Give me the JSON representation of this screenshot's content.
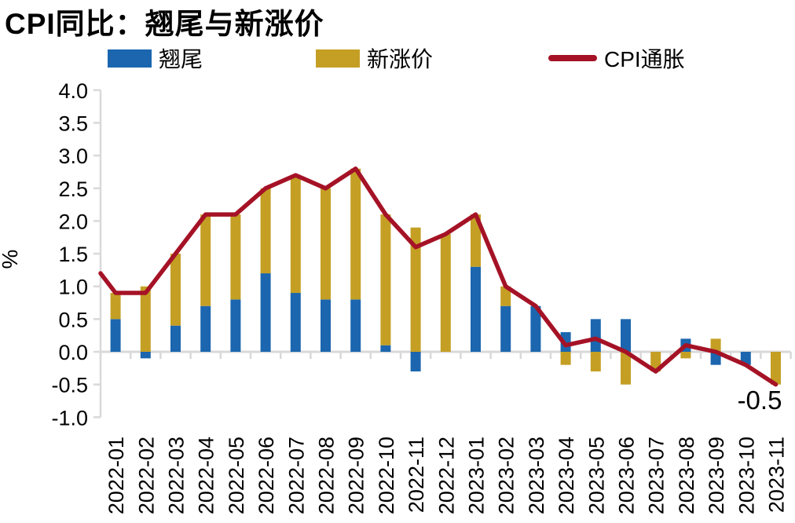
{
  "title": "CPI同比：翘尾与新涨价",
  "ylabel": "%",
  "annotation": {
    "text": "-0.5",
    "category": "2023-11",
    "value": -0.5
  },
  "axis": {
    "ytick_labels": [
      "4.0",
      "3.5",
      "3.0",
      "2.5",
      "2.0",
      "1.5",
      "1.0",
      "0.5",
      "0.0",
      "-0.5",
      "-1.0"
    ],
    "ylim": [
      -1.0,
      4.0
    ],
    "ytick_step": 0.5,
    "axis_color": "#D9D9D9",
    "text_color": "#000000"
  },
  "chart_data": {
    "type": "combo-stacked-bar-line",
    "title": "CPI同比：翘尾与新涨价",
    "xlabel": "",
    "ylabel": "%",
    "ylim": [
      -1.0,
      4.0
    ],
    "grid": false,
    "legend_position": "top",
    "categories": [
      "2022-01",
      "2022-02",
      "2022-03",
      "2022-04",
      "2022-05",
      "2022-06",
      "2022-07",
      "2022-08",
      "2022-09",
      "2022-10",
      "2022-11",
      "2022-12",
      "2023-01",
      "2023-02",
      "2023-03",
      "2023-04",
      "2023-05",
      "2023-06",
      "2023-07",
      "2023-08",
      "2023-09",
      "2023-10",
      "2023-11"
    ],
    "series": [
      {
        "name": "翘尾",
        "type": "bar",
        "color": "#1B66AF",
        "values": [
          0.5,
          -0.1,
          0.4,
          0.7,
          0.8,
          1.2,
          0.9,
          0.8,
          0.8,
          0.1,
          -0.3,
          0.0,
          1.3,
          0.7,
          0.7,
          0.3,
          0.5,
          0.5,
          0.0,
          0.2,
          -0.2,
          -0.2,
          0.0
        ]
      },
      {
        "name": "新涨价",
        "type": "bar",
        "color": "#C49F24",
        "values": [
          0.4,
          1.0,
          1.1,
          1.4,
          1.3,
          1.3,
          1.8,
          1.7,
          2.0,
          2.0,
          1.9,
          1.8,
          0.8,
          0.3,
          0.0,
          -0.2,
          -0.3,
          -0.5,
          -0.3,
          -0.1,
          0.2,
          0.0,
          -0.5
        ]
      },
      {
        "name": "CPI通胀",
        "type": "line",
        "color": "#A51226",
        "values": [
          0.9,
          0.9,
          1.5,
          2.1,
          2.1,
          2.5,
          2.7,
          2.5,
          2.8,
          2.1,
          1.6,
          1.8,
          2.1,
          1.0,
          0.7,
          0.1,
          0.2,
          0.0,
          -0.3,
          0.1,
          0.0,
          -0.2,
          -0.5
        ],
        "left_edge_clip_value": 1.2
      }
    ]
  }
}
